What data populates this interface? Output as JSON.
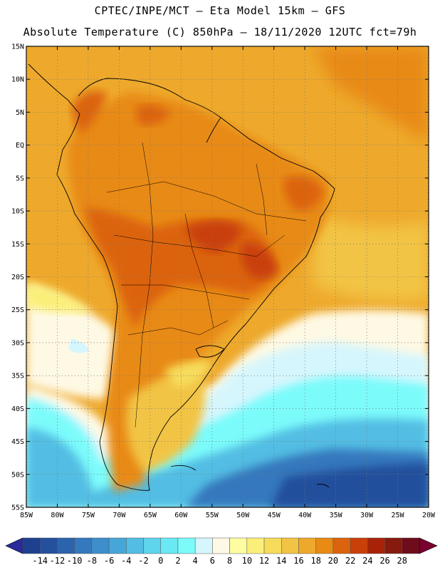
{
  "header": {
    "line1": "CPTEC/INPE/MCT –  Eta Model 15km – GFS",
    "line2": "Absolute Temperature (C) 850hPa – 18/11/2020 12UTC fct=79h"
  },
  "map": {
    "latitude_labels": [
      "15N",
      "10N",
      "5N",
      "EQ",
      "5S",
      "10S",
      "15S",
      "20S",
      "25S",
      "30S",
      "35S",
      "40S",
      "45S",
      "50S",
      "55S"
    ],
    "longitude_labels": [
      "85W",
      "80W",
      "75W",
      "70W",
      "65W",
      "60W",
      "55W",
      "50W",
      "45W",
      "40W",
      "35W",
      "30W",
      "25W",
      "20W"
    ],
    "extent": {
      "lon_west": -85,
      "lon_east": -20,
      "lat_north": 15,
      "lat_south": -55
    }
  },
  "colorbar": {
    "labels": [
      "-14",
      "-12",
      "-10",
      "-8",
      "-6",
      "-4",
      "-2",
      "0",
      "2",
      "4",
      "6",
      "8",
      "10",
      "12",
      "14",
      "16",
      "18",
      "20",
      "22",
      "24",
      "26",
      "28"
    ],
    "colors": [
      "#1f3f8f",
      "#24509c",
      "#2b63ad",
      "#3478bd",
      "#3d8ecb",
      "#47a6d8",
      "#53bde3",
      "#5fd4ec",
      "#6ae8f3",
      "#7cfbfb",
      "#d6f6fd",
      "#fef9e4",
      "#fefca0",
      "#fbef7a",
      "#f7dc5c",
      "#f2c445",
      "#eea92c",
      "#e88a14",
      "#dc630d",
      "#c9400a",
      "#a82207",
      "#861a0e",
      "#6e0c1b"
    ],
    "low_color": "#2a2a9c",
    "high_color": "#7a0030"
  }
}
